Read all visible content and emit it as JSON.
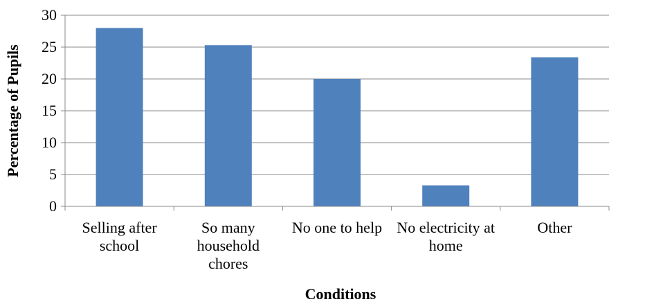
{
  "chart_data": {
    "type": "bar",
    "categories": [
      [
        "Selling after",
        "school"
      ],
      [
        "So many",
        "household",
        "chores"
      ],
      [
        "No one to help"
      ],
      [
        "No electricity at",
        "home"
      ],
      [
        "Other"
      ]
    ],
    "values": [
      28,
      25.3,
      20,
      3.3,
      23.4
    ],
    "xlabel": "Conditions",
    "ylabel": "Percentage of Pupils",
    "ylim": [
      0,
      30
    ],
    "yticks": [
      "0",
      "5",
      "10",
      "15",
      "20",
      "25",
      "30"
    ],
    "grid": true,
    "legend": "none",
    "colors": {
      "bar": "#4F81BD",
      "grid": "#888888",
      "axis": "#888888"
    }
  }
}
